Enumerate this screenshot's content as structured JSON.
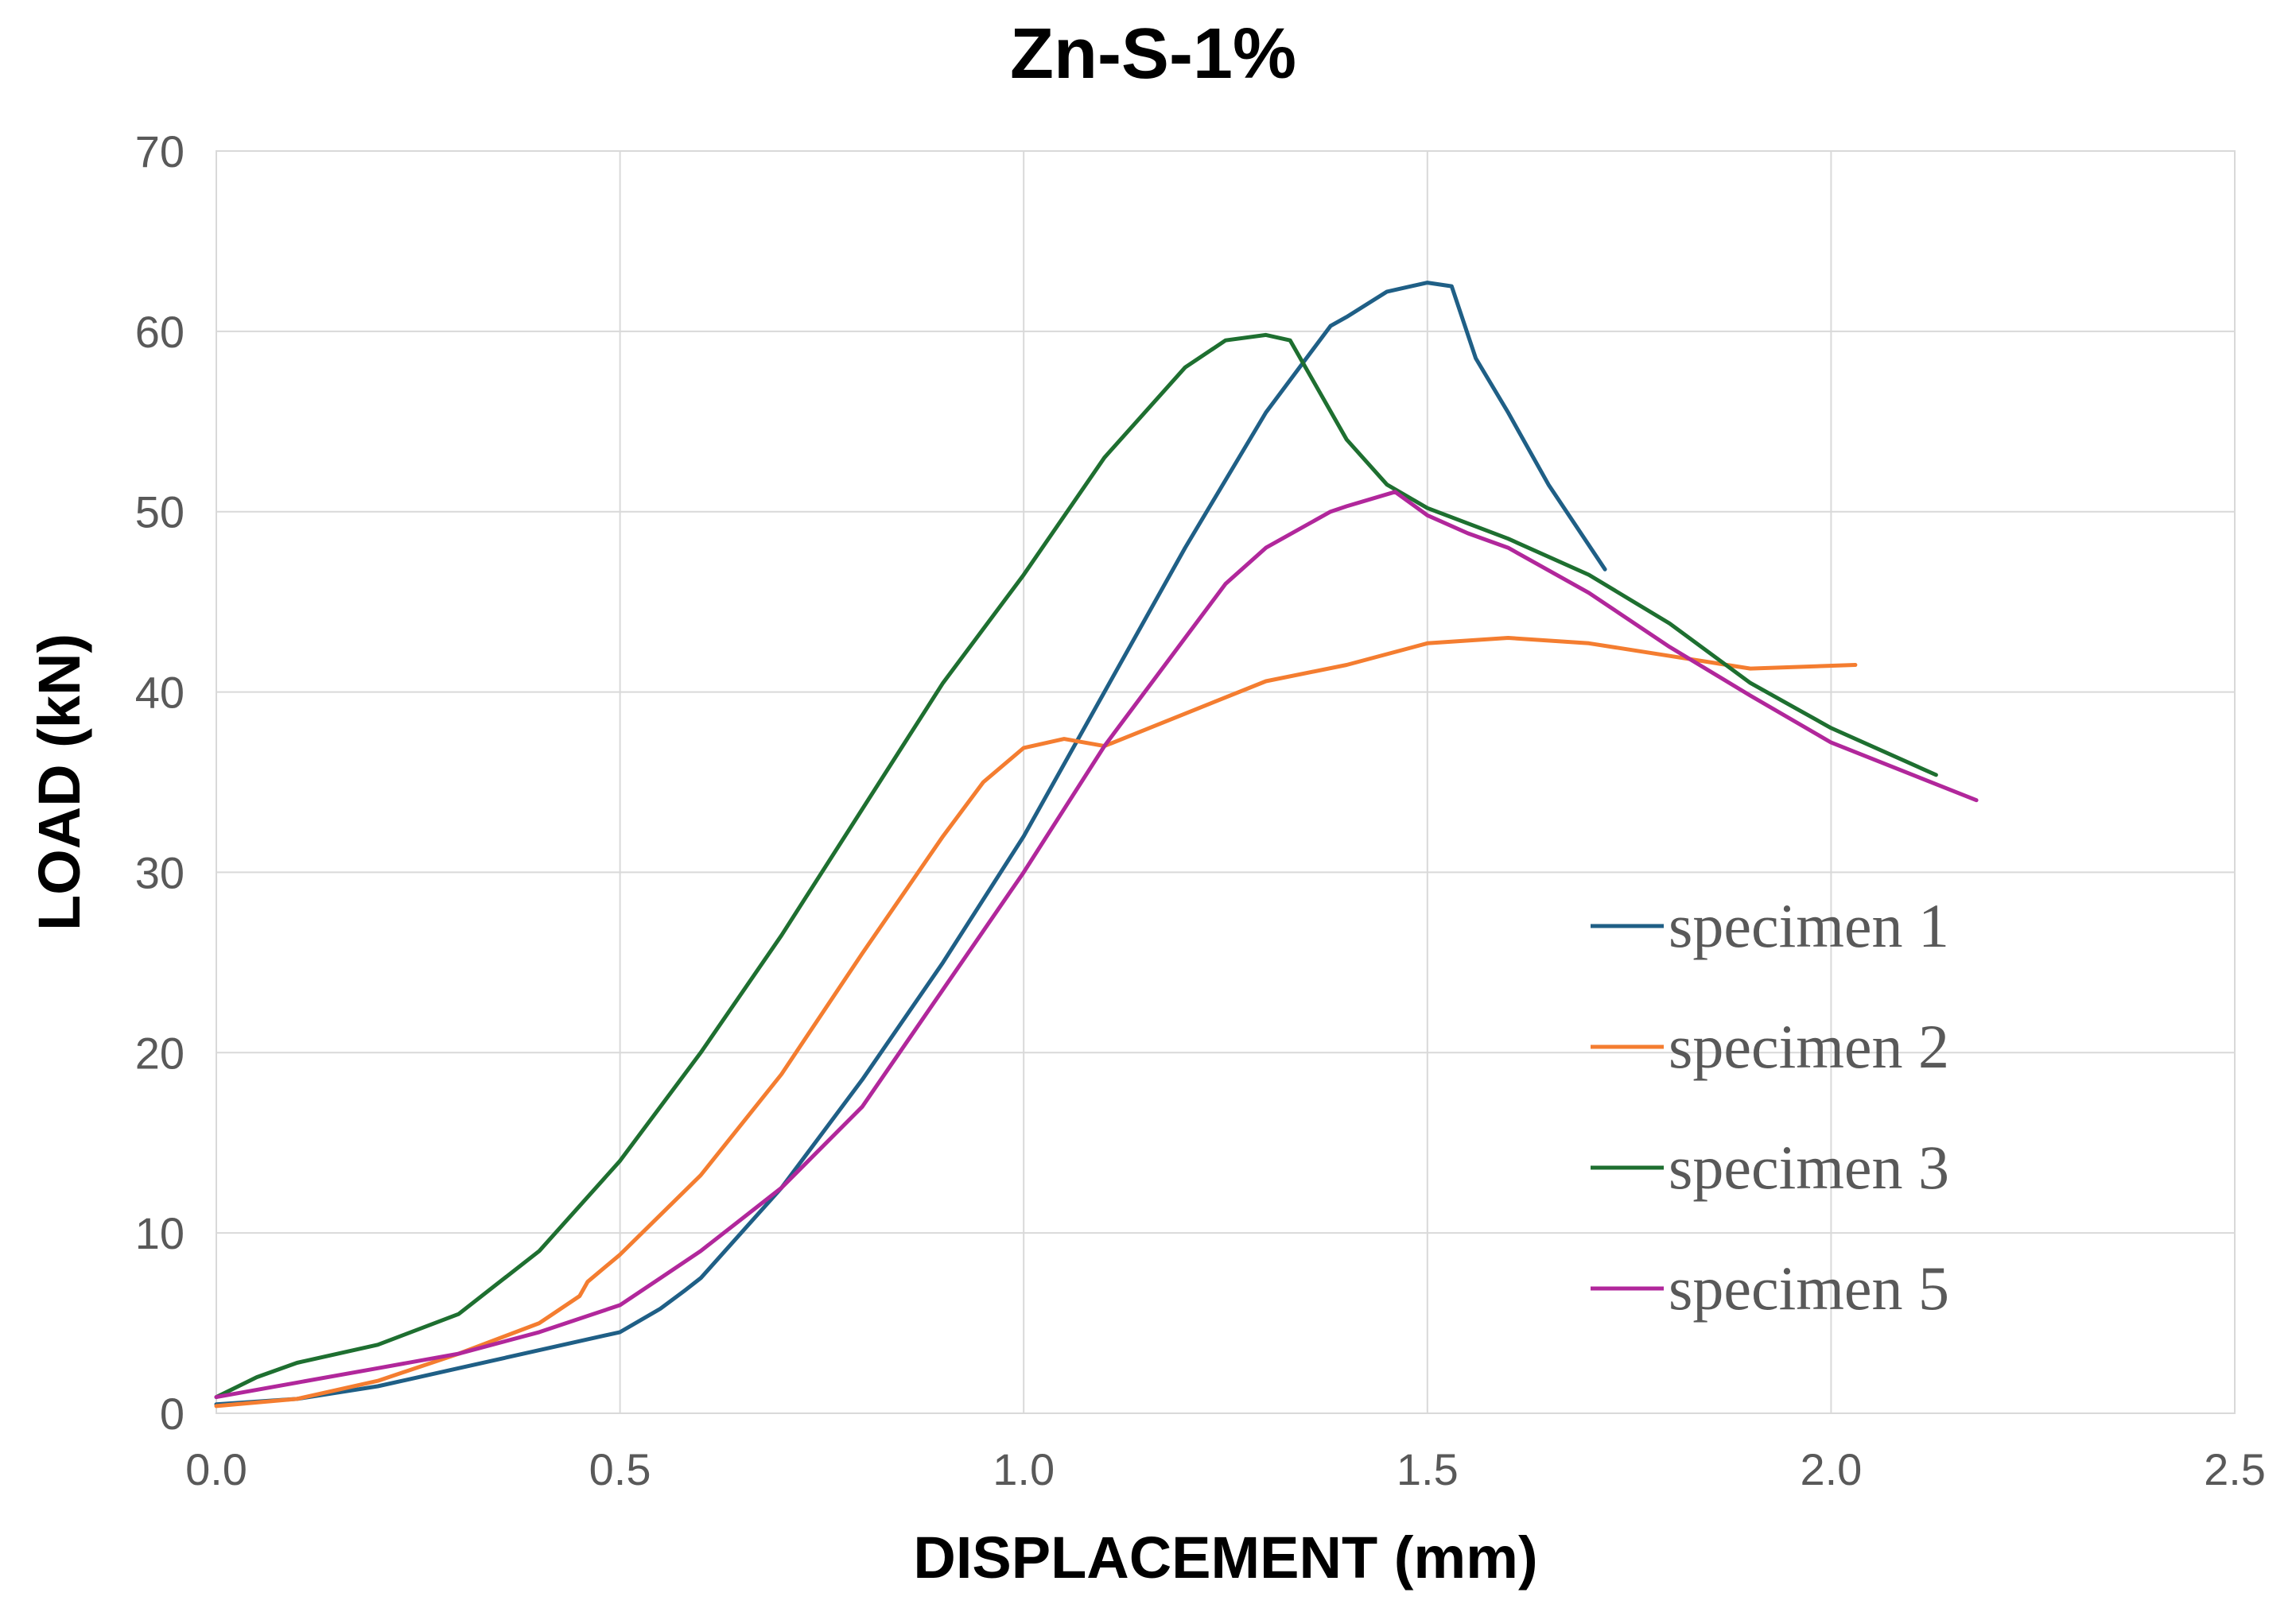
{
  "chart_data": {
    "type": "line",
    "title": "Zn-S-1%",
    "xlabel": "DISPLACEMENT (mm)",
    "ylabel": "LOAD (kN)",
    "xlim": [
      0,
      2.5
    ],
    "ylim": [
      0,
      70
    ],
    "xticks": [
      0.0,
      0.5,
      1.0,
      1.5,
      2.0,
      2.5
    ],
    "xtick_labels": [
      "0.0",
      "0.5",
      "1.0",
      "1.5",
      "2.0",
      "2.5"
    ],
    "yticks": [
      0,
      10,
      20,
      30,
      40,
      50,
      60,
      70
    ],
    "ytick_labels": [
      "0",
      "10",
      "20",
      "30",
      "40",
      "50",
      "60",
      "70"
    ],
    "grid": true,
    "legend_position": "lower-right",
    "series": [
      {
        "name": "specimen 1",
        "color": "#1f5f86",
        "x": [
          0.0,
          0.1,
          0.2,
          0.3,
          0.4,
          0.5,
          0.55,
          0.58,
          0.6,
          0.7,
          0.8,
          0.9,
          1.0,
          1.1,
          1.2,
          1.3,
          1.38,
          1.4,
          1.45,
          1.5,
          1.53,
          1.56,
          1.6,
          1.65,
          1.72
        ],
        "y": [
          0.5,
          0.8,
          1.5,
          2.5,
          3.5,
          4.5,
          5.8,
          6.8,
          7.5,
          12.5,
          18.5,
          25.0,
          32.0,
          40.0,
          48.0,
          55.5,
          60.3,
          60.8,
          62.2,
          62.7,
          62.5,
          58.5,
          55.5,
          51.5,
          46.8
        ]
      },
      {
        "name": "specimen 2",
        "color": "#f47d30",
        "x": [
          0.0,
          0.1,
          0.2,
          0.3,
          0.4,
          0.45,
          0.46,
          0.5,
          0.6,
          0.7,
          0.8,
          0.9,
          0.95,
          1.0,
          1.05,
          1.1,
          1.2,
          1.3,
          1.4,
          1.5,
          1.6,
          1.7,
          1.8,
          1.9,
          2.03
        ],
        "y": [
          0.4,
          0.8,
          1.8,
          3.3,
          5.0,
          6.5,
          7.3,
          8.8,
          13.2,
          18.8,
          25.5,
          32.0,
          35.0,
          36.9,
          37.4,
          37.0,
          38.8,
          40.6,
          41.5,
          42.7,
          43.0,
          42.7,
          42.0,
          41.3,
          41.5
        ]
      },
      {
        "name": "specimen 3",
        "color": "#1e6f30",
        "x": [
          0.0,
          0.05,
          0.1,
          0.2,
          0.3,
          0.4,
          0.5,
          0.6,
          0.7,
          0.8,
          0.9,
          1.0,
          1.1,
          1.2,
          1.25,
          1.3,
          1.33,
          1.4,
          1.45,
          1.5,
          1.6,
          1.7,
          1.8,
          1.9,
          2.0,
          2.13
        ],
        "y": [
          0.9,
          2.0,
          2.8,
          3.8,
          5.5,
          9.0,
          14.0,
          20.0,
          26.5,
          33.5,
          40.5,
          46.5,
          53.0,
          58.0,
          59.5,
          59.8,
          59.5,
          54.0,
          51.5,
          50.2,
          48.5,
          46.5,
          43.8,
          40.5,
          38.0,
          35.4
        ]
      },
      {
        "name": "specimen 5",
        "color": "#b1279b",
        "x": [
          0.0,
          0.1,
          0.2,
          0.3,
          0.4,
          0.5,
          0.55,
          0.6,
          0.7,
          0.8,
          0.9,
          1.0,
          1.1,
          1.2,
          1.25,
          1.3,
          1.38,
          1.4,
          1.46,
          1.5,
          1.55,
          1.6,
          1.7,
          1.8,
          1.9,
          2.0,
          2.18
        ],
        "y": [
          0.9,
          1.7,
          2.5,
          3.3,
          4.5,
          6.0,
          7.5,
          9.0,
          12.5,
          17.0,
          23.5,
          30.0,
          37.0,
          43.0,
          46.0,
          48.0,
          50.0,
          50.3,
          51.1,
          49.8,
          48.8,
          48.0,
          45.5,
          42.5,
          39.8,
          37.2,
          34.0
        ]
      }
    ]
  }
}
